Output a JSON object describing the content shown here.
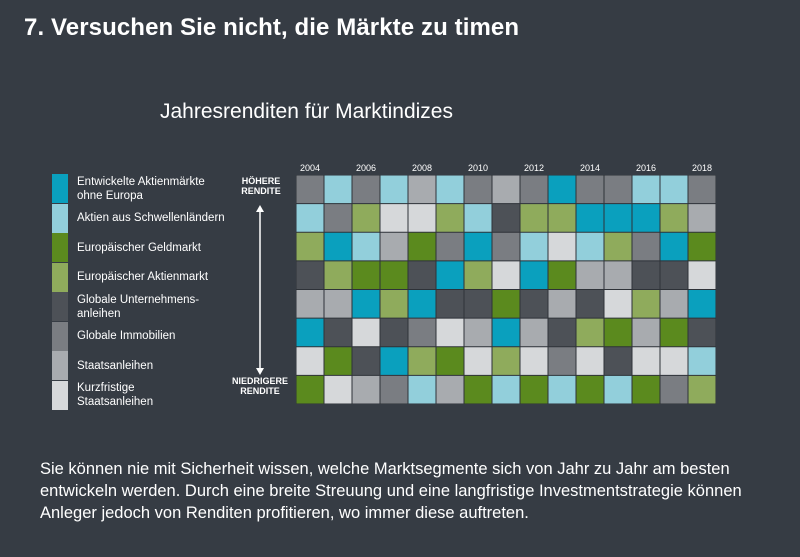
{
  "slide": {
    "title": "7. Versuchen Sie nicht, die Märkte zu timen",
    "body": "Sie können nie mit Sicherheit wissen, welche Marktsegmente sich von Jahr zu Jahr am besten entwickeln werden. Durch eine breite Streuung und eine langfristige Investmentstrategie können Anleger jedoch von Renditen profitieren, wo immer diese auftreten."
  },
  "chart_data": {
    "type": "heatmap",
    "title": "Jahresrenditen für Marktindizes",
    "y_top_label": "HÖHERE\nRENDITE",
    "y_bottom_label": "NIEDRIGERE\nRENDITE",
    "x_tick_labels": [
      "2004",
      "2006",
      "2008",
      "2010",
      "2012",
      "2014",
      "2016",
      "2018"
    ],
    "years": [
      2004,
      2005,
      2006,
      2007,
      2008,
      2009,
      2010,
      2011,
      2012,
      2013,
      2014,
      2015,
      2016,
      2017,
      2018
    ],
    "categories": [
      {
        "key": "EA",
        "label": "Entwickelte Aktienmärkte\nohne Europa",
        "color": "#0aa0be"
      },
      {
        "key": "EM",
        "label": "Aktien aus Schwellenländern",
        "color": "#92cfdb"
      },
      {
        "key": "EG",
        "label": "Europäischer Geldmarkt",
        "color": "#5b8a1e"
      },
      {
        "key": "EAM",
        "label": "Europäischer Aktienmarkt",
        "color": "#8fab5c"
      },
      {
        "key": "GU",
        "label": "Globale Unternehmens-\nanleihen",
        "color": "#4d5157"
      },
      {
        "key": "GI",
        "label": "Globale Immobilien",
        "color": "#7a7d82"
      },
      {
        "key": "SA",
        "label": "Staatsanleihen",
        "color": "#a8abaf"
      },
      {
        "key": "KS",
        "label": "Kurzfristige\nStaatsanleihen",
        "color": "#d6d8da"
      }
    ],
    "rankings": [
      [
        "GI",
        "EM",
        "GI",
        "EM",
        "SA",
        "EM",
        "GI",
        "SA",
        "GI",
        "EA",
        "GI",
        "GI",
        "EM",
        "EM",
        "GI"
      ],
      [
        "EM",
        "GI",
        "EAM",
        "KS",
        "KS",
        "EAM",
        "EM",
        "GU",
        "EAM",
        "EAM",
        "EA",
        "EA",
        "EA",
        "EAM",
        "SA"
      ],
      [
        "EAM",
        "EA",
        "EM",
        "SA",
        "EG",
        "GI",
        "EA",
        "GI",
        "EM",
        "KS",
        "EM",
        "EAM",
        "GI",
        "EA",
        "EG"
      ],
      [
        "GU",
        "EAM",
        "EG",
        "EG",
        "GU",
        "EA",
        "EAM",
        "KS",
        "EA",
        "EG",
        "SA",
        "SA",
        "GU",
        "GU",
        "KS"
      ],
      [
        "SA",
        "SA",
        "EA",
        "EAM",
        "EA",
        "GU",
        "GU",
        "EG",
        "GU",
        "SA",
        "GU",
        "KS",
        "EAM",
        "SA",
        "EA"
      ],
      [
        "EA",
        "GU",
        "KS",
        "GU",
        "GI",
        "KS",
        "SA",
        "EA",
        "SA",
        "GU",
        "EAM",
        "EG",
        "SA",
        "EG",
        "GU"
      ],
      [
        "KS",
        "EG",
        "GU",
        "EA",
        "EAM",
        "EG",
        "KS",
        "EAM",
        "KS",
        "GI",
        "KS",
        "GU",
        "KS",
        "KS",
        "EM"
      ],
      [
        "EG",
        "KS",
        "SA",
        "GI",
        "EM",
        "SA",
        "EG",
        "EM",
        "EG",
        "EM",
        "EG",
        "EM",
        "EG",
        "GI",
        "EAM"
      ]
    ]
  }
}
